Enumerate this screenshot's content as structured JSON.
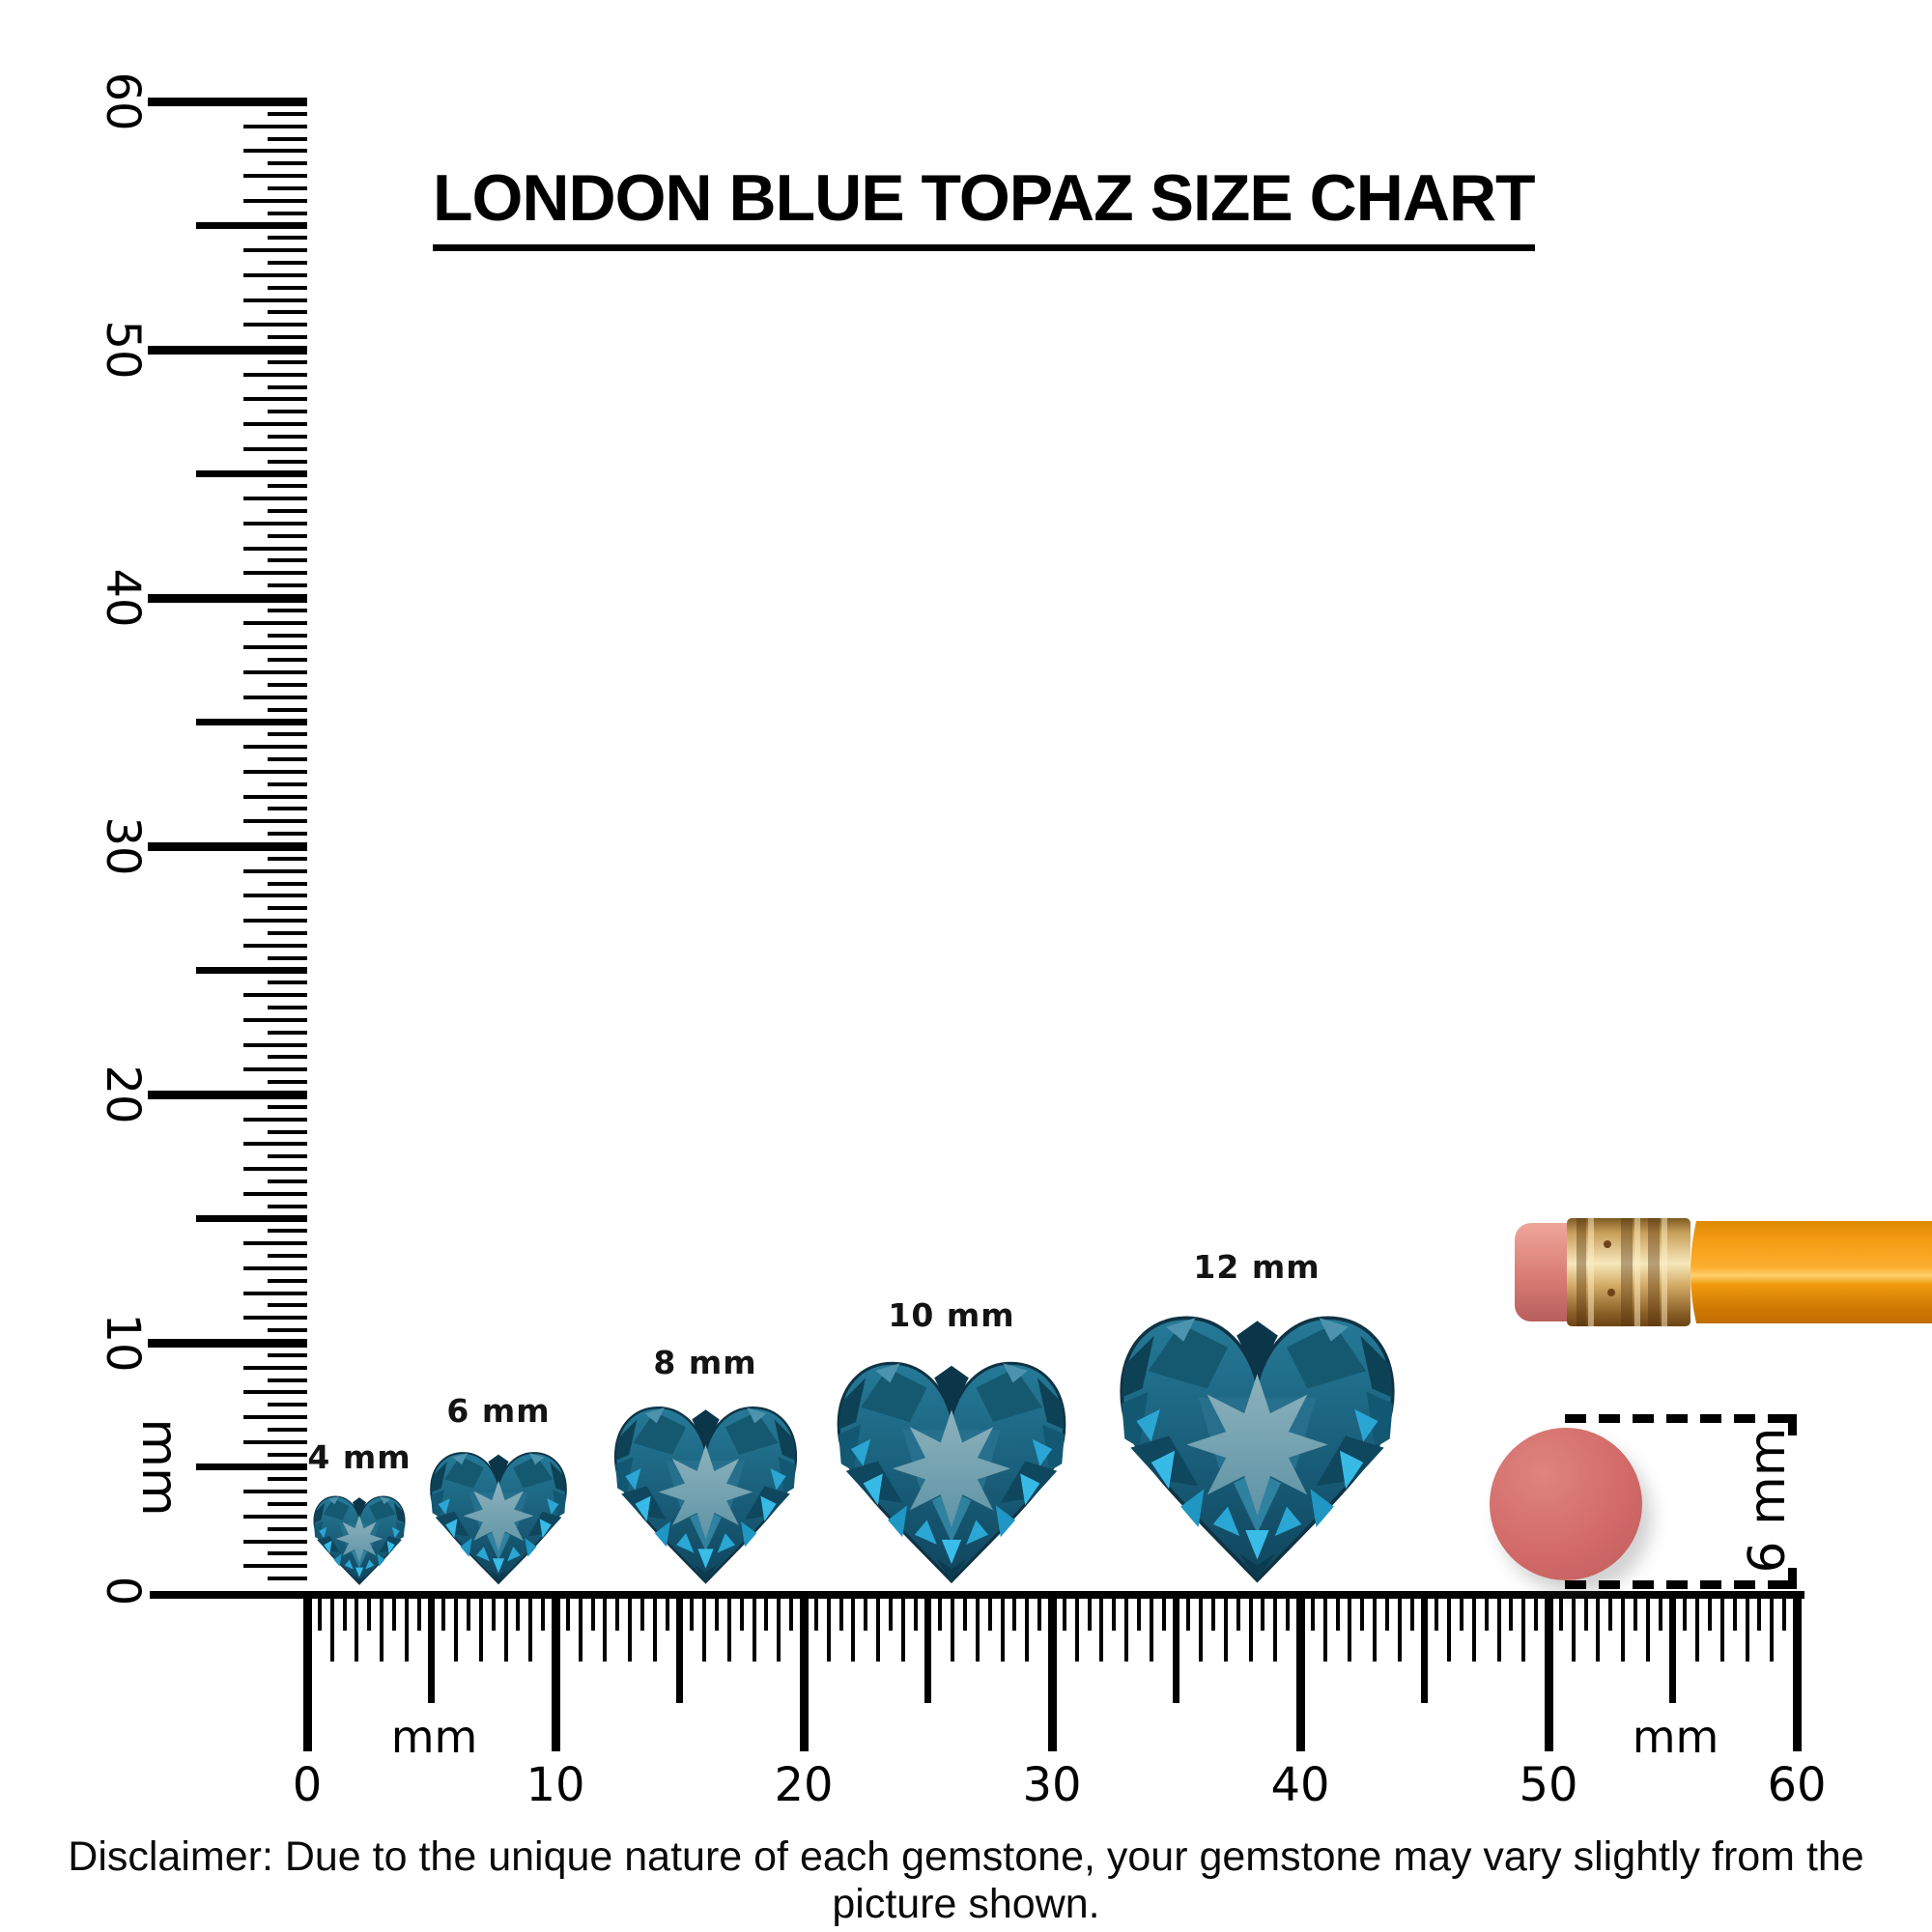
{
  "title": "LONDON BLUE TOPAZ SIZE CHART",
  "gem_chart": {
    "stone": "London Blue Topaz",
    "cut": "heart",
    "sizes": [
      {
        "label": "4 mm",
        "mm": 4
      },
      {
        "label": "6 mm",
        "mm": 6
      },
      {
        "label": "8 mm",
        "mm": 8
      },
      {
        "label": "10 mm",
        "mm": 10
      },
      {
        "label": "12 mm",
        "mm": 12
      }
    ]
  },
  "rulers": {
    "unit": "mm",
    "vertical": {
      "numbers": [
        "0",
        "10",
        "20",
        "30",
        "40",
        "50",
        "60"
      ],
      "unit_label": "mm"
    },
    "horizontal": {
      "numbers": [
        "0",
        "10",
        "20",
        "30",
        "40",
        "50",
        "60"
      ],
      "unit_label": "mm"
    }
  },
  "side_measure": {
    "label": "6 mm"
  },
  "disclaimer": "Disclaimer: Due to the unique nature of each gemstone, your gemstone may vary slightly from the picture shown.",
  "colors": {
    "ink": "#000000",
    "gem_dark": "#0d3f54",
    "gem_mid": "#1e6a86",
    "gem_star_light": "#8db2bc",
    "gem_cyan": "#2ba6d4",
    "pencil_body_orange": "#f59d13",
    "pencil_ferrule_gold": "#c9a15c",
    "pencil_eraser_pink": "#db8077",
    "eraser_top_pink": "#d26b69"
  }
}
